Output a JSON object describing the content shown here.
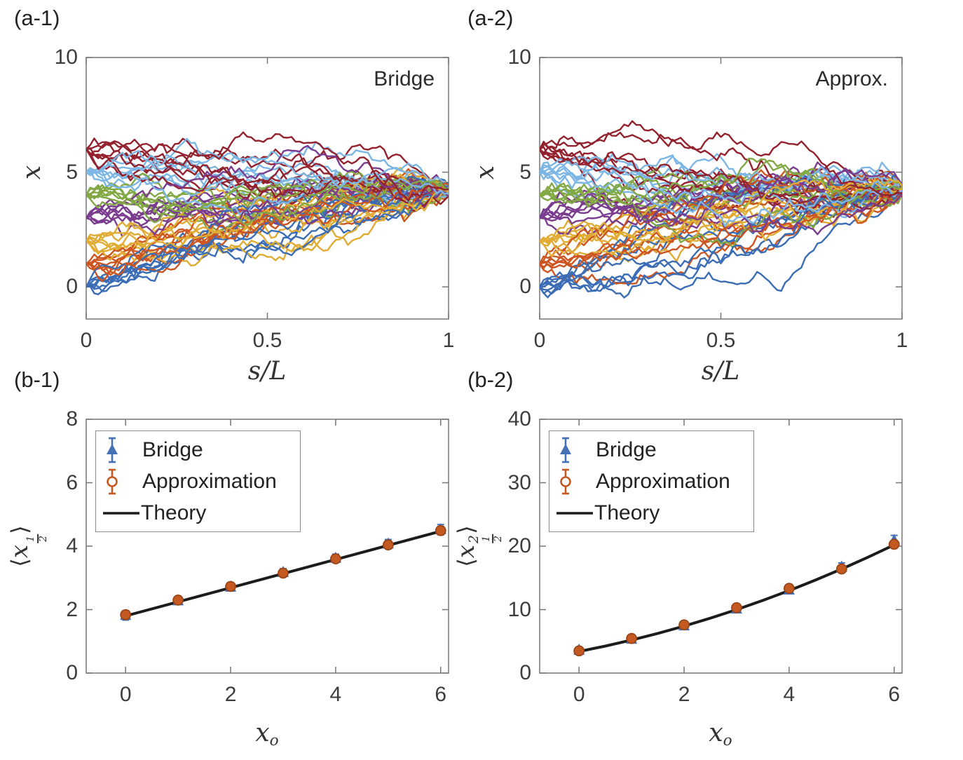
{
  "figure": {
    "background": "#ffffff"
  },
  "colors": {
    "palette": [
      "#3A6DB5",
      "#CC5520",
      "#E0AC34",
      "#7A3C8F",
      "#82A844",
      "#7CB6E4",
      "#93212E"
    ],
    "bridge_marker": "#4470B5",
    "approx_marker": "#C45A22",
    "approx_marker_edge": "#9A4517",
    "theory_line": "#1c1c1c",
    "spine": "#757575",
    "text": "#3a3a3a"
  },
  "legend": {
    "items": [
      "Bridge",
      "Approximation",
      "Theory"
    ]
  },
  "panels": {
    "a1": {
      "label": "(a-1)",
      "annotation": "Bridge"
    },
    "a2": {
      "label": "(a-2)",
      "annotation": "Approx."
    },
    "b1": {
      "label": "(b-1)"
    },
    "b2": {
      "label": "(b-2)"
    }
  },
  "chart_data": [
    {
      "id": "a1",
      "type": "line",
      "annotation": "Bridge",
      "xlabel": {
        "base": "s/L"
      },
      "ylabel": {
        "base": "x"
      },
      "xlim": [
        0,
        1
      ],
      "ylim": [
        -1.4,
        10
      ],
      "xticks": [
        0,
        0.5,
        1
      ],
      "xtick_labels": [
        "0",
        "0.5",
        "1"
      ],
      "yticks": [
        0,
        5,
        10
      ],
      "ytick_labels": [
        "0",
        "5",
        "10"
      ],
      "grid": false,
      "trajectories": {
        "description": "Stochastic bridge paths: bundles start at x_o = 0..6 and converge near x ≈ 4.25 at s/L = 1",
        "starts": [
          0,
          1,
          2,
          3,
          4,
          5,
          6
        ],
        "lines_per_start": 8,
        "steps": 90,
        "noise_sigma": 0.16,
        "end_mean": 4.25,
        "end_jitter": 0.6,
        "seed": 20231
      }
    },
    {
      "id": "a2",
      "type": "line",
      "annotation": "Approx.",
      "xlabel": {
        "base": "s/L"
      },
      "ylabel": {
        "base": "x"
      },
      "xlim": [
        0,
        1
      ],
      "ylim": [
        -1.4,
        10
      ],
      "xticks": [
        0,
        0.5,
        1
      ],
      "xtick_labels": [
        "0",
        "0.5",
        "1"
      ],
      "yticks": [
        0,
        5,
        10
      ],
      "ytick_labels": [
        "0",
        "5",
        "10"
      ],
      "grid": false,
      "trajectories": {
        "description": "Approximate stochastic bridge paths: bundles start at x_o = 0..6 and converge near x ≈ 4.25 at s/L = 1",
        "starts": [
          0,
          1,
          2,
          3,
          4,
          5,
          6
        ],
        "lines_per_start": 8,
        "steps": 90,
        "noise_sigma": 0.16,
        "end_mean": 4.25,
        "end_jitter": 0.6,
        "seed": 48613
      }
    },
    {
      "id": "b1",
      "type": "scatter",
      "xlabel": {
        "base": "x",
        "sub": "o"
      },
      "ylabel": {
        "angle": true,
        "base": "x",
        "frac_sub": [
          "1",
          "2"
        ]
      },
      "xlim": [
        -0.75,
        6.15
      ],
      "ylim": [
        0,
        8
      ],
      "xticks": [
        0,
        2,
        4,
        6
      ],
      "xtick_labels": [
        "0",
        "2",
        "4",
        "6"
      ],
      "yticks": [
        0,
        2,
        4,
        6,
        8
      ],
      "ytick_labels": [
        "0",
        "2",
        "4",
        "6",
        "8"
      ],
      "grid": false,
      "legend_position": "top-left",
      "x": [
        0,
        1,
        2,
        3,
        4,
        5,
        6
      ],
      "series": [
        {
          "name": "Bridge",
          "marker": "triangle",
          "values": [
            1.82,
            2.28,
            2.71,
            3.17,
            3.62,
            4.07,
            4.52
          ],
          "yerr": [
            0.15,
            0.12,
            0.12,
            0.12,
            0.13,
            0.14,
            0.16
          ]
        },
        {
          "name": "Approximation",
          "marker": "circle",
          "values": [
            1.84,
            2.3,
            2.73,
            3.15,
            3.6,
            4.04,
            4.49
          ],
          "yerr": [
            0.12,
            0.1,
            0.1,
            0.1,
            0.11,
            0.12,
            0.13
          ]
        }
      ],
      "theory": {
        "x": [
          0,
          6
        ],
        "y": [
          1.8,
          4.47
        ]
      }
    },
    {
      "id": "b2",
      "type": "scatter",
      "xlabel": {
        "base": "x",
        "sub": "o"
      },
      "ylabel": {
        "angle": true,
        "base": "x",
        "sup": "2",
        "frac_sub": [
          "1",
          "2"
        ]
      },
      "xlim": [
        -0.75,
        6.15
      ],
      "ylim": [
        0,
        40
      ],
      "xticks": [
        0,
        2,
        4,
        6
      ],
      "xtick_labels": [
        "0",
        "2",
        "4",
        "6"
      ],
      "yticks": [
        0,
        10,
        20,
        30,
        40
      ],
      "ytick_labels": [
        "0",
        "10",
        "20",
        "30",
        "40"
      ],
      "grid": false,
      "legend_position": "top-left",
      "x": [
        0,
        1,
        2,
        3,
        4,
        5,
        6
      ],
      "series": [
        {
          "name": "Bridge",
          "marker": "triangle",
          "values": [
            3.6,
            5.35,
            7.45,
            10.1,
            13.1,
            16.7,
            20.9
          ],
          "yerr": [
            0.35,
            0.4,
            0.45,
            0.5,
            0.55,
            0.65,
            0.8
          ]
        },
        {
          "name": "Approximation",
          "marker": "circle",
          "values": [
            3.5,
            5.45,
            7.6,
            10.3,
            13.35,
            16.4,
            20.3
          ],
          "yerr": [
            0.3,
            0.32,
            0.35,
            0.4,
            0.45,
            0.5,
            0.6
          ]
        }
      ],
      "theory": {
        "x": [
          0,
          0.5,
          1,
          1.5,
          2,
          2.5,
          3,
          3.5,
          4,
          4.5,
          5,
          5.5,
          6
        ],
        "y": [
          3.4,
          4.25,
          5.2,
          6.25,
          7.4,
          8.65,
          10.0,
          11.45,
          13.0,
          14.65,
          16.4,
          18.25,
          20.2
        ]
      }
    }
  ]
}
